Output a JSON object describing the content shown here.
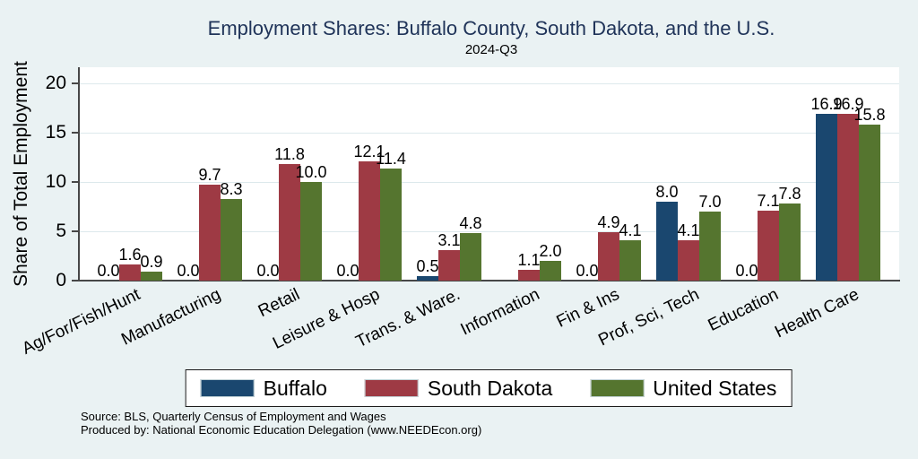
{
  "palette": {
    "background": "#eaf2f3",
    "plot_background": "#ffffff",
    "gridline": "#dde9ec",
    "axis": "#474747",
    "title_color": "#203459",
    "buffalo_blue": "#1a476f",
    "south_dakota_red": "#9e3a44",
    "united_states_green": "#55752f"
  },
  "chart_data": {
    "type": "bar",
    "title": "Employment Shares: Buffalo County, South Dakota, and the U.S.",
    "subtitle": "2024-Q3",
    "ylabel": "Share of Total Employment",
    "xlabel": "",
    "ylim": [
      0,
      20
    ],
    "yticks": [
      0,
      5,
      10,
      15,
      20
    ],
    "grid": true,
    "bar_labels": true,
    "legend_position": "bottom-center",
    "categories": [
      "Ag/For/Fish/Hunt",
      "Manufacturing",
      "Retail",
      "Leisure & Hosp",
      "Trans. & Ware.",
      "Information",
      "Fin & Ins",
      "Prof, Sci, Tech",
      "Education",
      "Health Care"
    ],
    "series": [
      {
        "name": "Buffalo",
        "color": "#1a476f",
        "values": [
          0.0,
          0.0,
          0.0,
          0.0,
          0.5,
          null,
          0.0,
          8.0,
          0.0,
          16.9
        ]
      },
      {
        "name": "South Dakota",
        "color": "#9e3a44",
        "values": [
          1.6,
          9.7,
          11.8,
          12.1,
          3.1,
          1.1,
          4.9,
          4.1,
          7.1,
          16.9
        ]
      },
      {
        "name": "United States",
        "color": "#55752f",
        "values": [
          0.9,
          8.3,
          10.0,
          11.4,
          4.8,
          2.0,
          4.1,
          7.0,
          7.8,
          15.8
        ]
      }
    ]
  },
  "notes": {
    "source": "Source: BLS, Quarterly Census of Employment and Wages",
    "produced_by": "Produced by: National Economic Education Delegation (www.NEEDEcon.org)"
  }
}
